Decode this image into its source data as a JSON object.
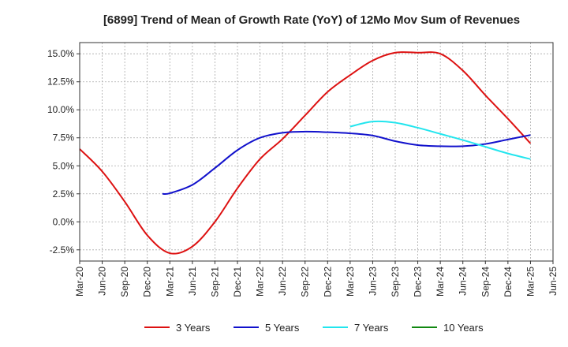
{
  "chart_data": {
    "type": "line",
    "title": "[6899]  Trend of Mean of Growth Rate (YoY) of 12Mo Mov Sum of Revenues",
    "xlabel": "",
    "ylabel": "",
    "ylim": [
      -3.5,
      16.0
    ],
    "y_ticks": [
      -2.5,
      0.0,
      2.5,
      5.0,
      7.5,
      10.0,
      12.5,
      15.0
    ],
    "y_tick_labels": [
      "-2.5%",
      "0.0%",
      "2.5%",
      "5.0%",
      "7.5%",
      "10.0%",
      "12.5%",
      "15.0%"
    ],
    "x_tick_labels": [
      "Mar-20",
      "Jun-20",
      "Sep-20",
      "Dec-20",
      "Mar-21",
      "Jun-21",
      "Sep-21",
      "Dec-21",
      "Mar-22",
      "Jun-22",
      "Sep-22",
      "Dec-22",
      "Mar-23",
      "Jun-23",
      "Sep-23",
      "Dec-23",
      "Mar-24",
      "Jun-24",
      "Sep-24",
      "Dec-24",
      "Mar-25",
      "Jun-25"
    ],
    "grid": true,
    "series": [
      {
        "name": "3 Years",
        "color": "#dd1111",
        "points": [
          [
            0,
            6.5
          ],
          [
            1,
            4.5
          ],
          [
            2,
            1.8
          ],
          [
            3,
            -1.2
          ],
          [
            4,
            -2.8
          ],
          [
            5,
            -2.2
          ],
          [
            6,
            0.0
          ],
          [
            7,
            3.0
          ],
          [
            8,
            5.6
          ],
          [
            9,
            7.4
          ],
          [
            10,
            9.5
          ],
          [
            11,
            11.6
          ],
          [
            12,
            13.1
          ],
          [
            13,
            14.4
          ],
          [
            14,
            15.1
          ],
          [
            15,
            15.1
          ],
          [
            16,
            15.0
          ],
          [
            17,
            13.5
          ],
          [
            18,
            11.3
          ],
          [
            19,
            9.2
          ],
          [
            20,
            7.0
          ]
        ]
      },
      {
        "name": "5 Years",
        "color": "#1111cc",
        "points": [
          [
            3.67,
            2.5
          ],
          [
            4,
            2.55
          ],
          [
            5,
            3.3
          ],
          [
            6,
            4.8
          ],
          [
            7,
            6.4
          ],
          [
            8,
            7.5
          ],
          [
            9,
            7.95
          ],
          [
            10,
            8.05
          ],
          [
            11,
            8.0
          ],
          [
            12,
            7.9
          ],
          [
            13,
            7.7
          ],
          [
            14,
            7.2
          ],
          [
            15,
            6.85
          ],
          [
            16,
            6.75
          ],
          [
            17,
            6.75
          ],
          [
            18,
            6.95
          ],
          [
            19,
            7.35
          ],
          [
            20,
            7.75
          ]
        ]
      },
      {
        "name": "7 Years",
        "color": "#22e5ee",
        "points": [
          [
            12,
            8.5
          ],
          [
            13,
            8.95
          ],
          [
            14,
            8.85
          ],
          [
            15,
            8.4
          ],
          [
            16,
            7.85
          ],
          [
            17,
            7.3
          ],
          [
            18,
            6.7
          ],
          [
            19,
            6.1
          ],
          [
            20,
            5.6
          ]
        ]
      },
      {
        "name": "10 Years",
        "color": "#118811",
        "points": []
      }
    ]
  }
}
